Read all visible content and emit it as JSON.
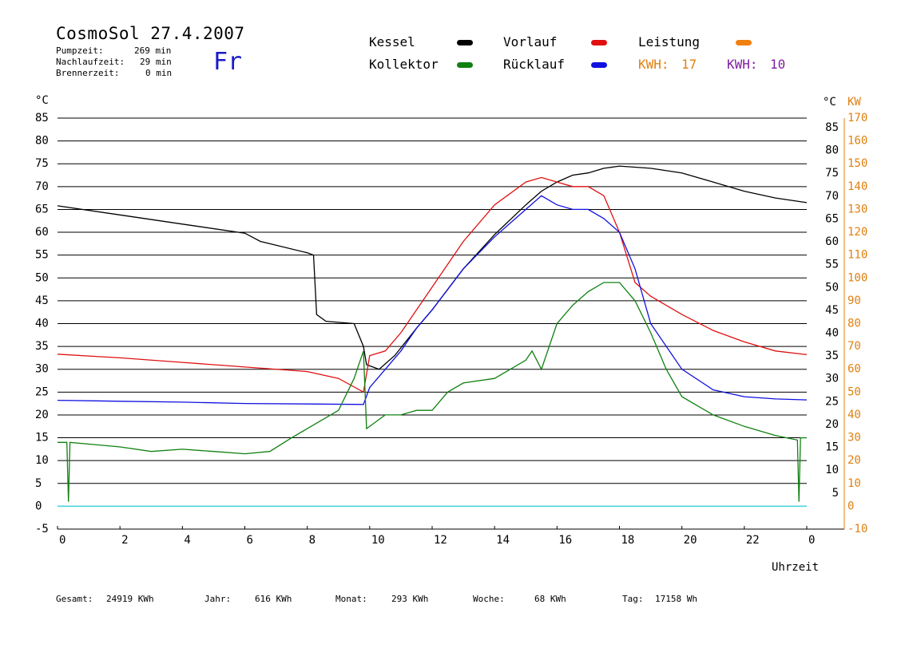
{
  "header": {
    "title": "CosmoSol 27.4.2007",
    "day": "Fr",
    "stats": [
      {
        "label": "Pumpzeit:",
        "value": "269 min"
      },
      {
        "label": "Nachlaufzeit:",
        "value": "29 min"
      },
      {
        "label": "Brennerzeit:",
        "value": "0 min"
      }
    ]
  },
  "legend": {
    "kessel": {
      "label": "Kessel",
      "color": "#000000"
    },
    "vorlauf": {
      "label": "Vorlauf",
      "color": "#e01010"
    },
    "leistung": {
      "label": "Leistung",
      "color": "#f08010"
    },
    "kollektor": {
      "label": "Kollektor",
      "color": "#108010"
    },
    "ruecklauf": {
      "label": "Rücklauf",
      "color": "#1010e0"
    },
    "kwh1": {
      "label": "KWH:",
      "value": "17",
      "color": "#e08010"
    },
    "kwh2": {
      "label": "KWH:",
      "value": "10",
      "color": "#8020a0"
    }
  },
  "footer": [
    {
      "label": "Gesamt:",
      "value": "24919 KWh"
    },
    {
      "label": "Jahr:",
      "value": "616 KWh"
    },
    {
      "label": "Monat:",
      "value": "293 KWh"
    },
    {
      "label": "Woche:",
      "value": "68 KWh"
    },
    {
      "label": "Tag:",
      "value": "17158 Wh"
    }
  ],
  "chart_data": {
    "type": "line",
    "xlabel": "Uhrzeit",
    "ylabel_left": "°C",
    "ylabel_right": [
      "°C",
      "KW"
    ],
    "xlim": [
      0,
      24
    ],
    "ylim": [
      -5,
      85
    ],
    "ylim_power": [
      -10,
      170
    ],
    "x_ticks": [
      "0",
      "2",
      "4",
      "6",
      "8",
      "10",
      "12",
      "14",
      "16",
      "18",
      "20",
      "22",
      "0"
    ],
    "y_ticks": [
      85,
      80,
      75,
      70,
      65,
      60,
      55,
      50,
      45,
      40,
      35,
      30,
      25,
      20,
      15,
      10,
      5,
      0,
      -5
    ],
    "y_right_ticks": [
      85,
      80,
      75,
      70,
      65,
      60,
      55,
      50,
      45,
      40,
      35,
      30,
      25,
      20,
      15,
      10,
      5
    ],
    "power_ticks": [
      170,
      160,
      150,
      140,
      130,
      120,
      110,
      100,
      90,
      80,
      70,
      60,
      50,
      40,
      30,
      20,
      10,
      0,
      -10
    ],
    "grid": "horizontal",
    "series": [
      {
        "name": "Kessel",
        "color": "#000000",
        "points": [
          [
            0,
            65.8
          ],
          [
            2,
            63.8
          ],
          [
            4,
            61.8
          ],
          [
            6,
            59.8
          ],
          [
            6.5,
            58
          ],
          [
            8,
            55.5
          ],
          [
            8.2,
            55
          ],
          [
            8.3,
            42
          ],
          [
            8.6,
            40.5
          ],
          [
            9.5,
            40
          ],
          [
            9.8,
            35
          ],
          [
            9.9,
            31
          ],
          [
            10.3,
            30
          ],
          [
            10.8,
            33
          ],
          [
            11.5,
            39
          ],
          [
            12,
            43
          ],
          [
            13,
            52
          ],
          [
            14,
            59.5
          ],
          [
            15,
            66
          ],
          [
            15.5,
            69
          ],
          [
            16,
            71
          ],
          [
            16.5,
            72.5
          ],
          [
            17,
            73
          ],
          [
            17.5,
            74
          ],
          [
            18,
            74.5
          ],
          [
            19,
            74
          ],
          [
            20,
            73
          ],
          [
            21,
            71
          ],
          [
            22,
            69
          ],
          [
            23,
            67.5
          ],
          [
            24,
            66.5
          ]
        ]
      },
      {
        "name": "Vorlauf",
        "color": "#e01010",
        "points": [
          [
            0,
            33.3
          ],
          [
            2,
            32.5
          ],
          [
            4,
            31.5
          ],
          [
            6,
            30.5
          ],
          [
            8,
            29.5
          ],
          [
            9,
            28
          ],
          [
            9.8,
            25
          ],
          [
            10,
            33
          ],
          [
            10.5,
            34
          ],
          [
            11,
            38
          ],
          [
            11.5,
            43
          ],
          [
            12,
            48
          ],
          [
            13,
            58
          ],
          [
            14,
            66
          ],
          [
            15,
            71
          ],
          [
            15.5,
            72
          ],
          [
            16,
            71
          ],
          [
            16.5,
            70
          ],
          [
            17,
            70
          ],
          [
            17.5,
            68
          ],
          [
            18,
            60
          ],
          [
            18.5,
            49
          ],
          [
            19,
            46
          ],
          [
            20,
            42
          ],
          [
            21,
            38.5
          ],
          [
            22,
            36
          ],
          [
            23,
            34
          ],
          [
            24,
            33.2
          ]
        ]
      },
      {
        "name": "Rücklauf",
        "color": "#1010e0",
        "points": [
          [
            0,
            23.2
          ],
          [
            2,
            23
          ],
          [
            4,
            22.8
          ],
          [
            6,
            22.5
          ],
          [
            8,
            22.4
          ],
          [
            9.8,
            22.3
          ],
          [
            10,
            26
          ],
          [
            10.5,
            30
          ],
          [
            11,
            34
          ],
          [
            11.5,
            39
          ],
          [
            12,
            43
          ],
          [
            13,
            52
          ],
          [
            14,
            59
          ],
          [
            15,
            65
          ],
          [
            15.5,
            68
          ],
          [
            16,
            66
          ],
          [
            16.5,
            65
          ],
          [
            17,
            65
          ],
          [
            17.5,
            63
          ],
          [
            18,
            60
          ],
          [
            18.5,
            52
          ],
          [
            19,
            40
          ],
          [
            20,
            30
          ],
          [
            21,
            25.5
          ],
          [
            22,
            24
          ],
          [
            23,
            23.5
          ],
          [
            24,
            23.3
          ]
        ]
      },
      {
        "name": "Kollektor",
        "color": "#108010",
        "points": [
          [
            0,
            14
          ],
          [
            0.3,
            14
          ],
          [
            0.35,
            1
          ],
          [
            0.4,
            14
          ],
          [
            2,
            13
          ],
          [
            3,
            12
          ],
          [
            4,
            12.5
          ],
          [
            5,
            12
          ],
          [
            6,
            11.5
          ],
          [
            6.8,
            12
          ],
          [
            7.5,
            15
          ],
          [
            8,
            17
          ],
          [
            9,
            21
          ],
          [
            9.5,
            28
          ],
          [
            9.8,
            34
          ],
          [
            9.9,
            17
          ],
          [
            10.5,
            20
          ],
          [
            11,
            20
          ],
          [
            11.5,
            21
          ],
          [
            12,
            21
          ],
          [
            12.5,
            25
          ],
          [
            13,
            27
          ],
          [
            14,
            28
          ],
          [
            15,
            32
          ],
          [
            15.2,
            34
          ],
          [
            15.5,
            30
          ],
          [
            16,
            40
          ],
          [
            16.5,
            44
          ],
          [
            17,
            47
          ],
          [
            17.5,
            49
          ],
          [
            18,
            49
          ],
          [
            18.5,
            45
          ],
          [
            19,
            38
          ],
          [
            19.5,
            30
          ],
          [
            20,
            24
          ],
          [
            21,
            20
          ],
          [
            22,
            17.5
          ],
          [
            23,
            15.5
          ],
          [
            23.7,
            14.5
          ],
          [
            23.75,
            1
          ],
          [
            23.8,
            15
          ],
          [
            24,
            15
          ]
        ]
      }
    ]
  }
}
